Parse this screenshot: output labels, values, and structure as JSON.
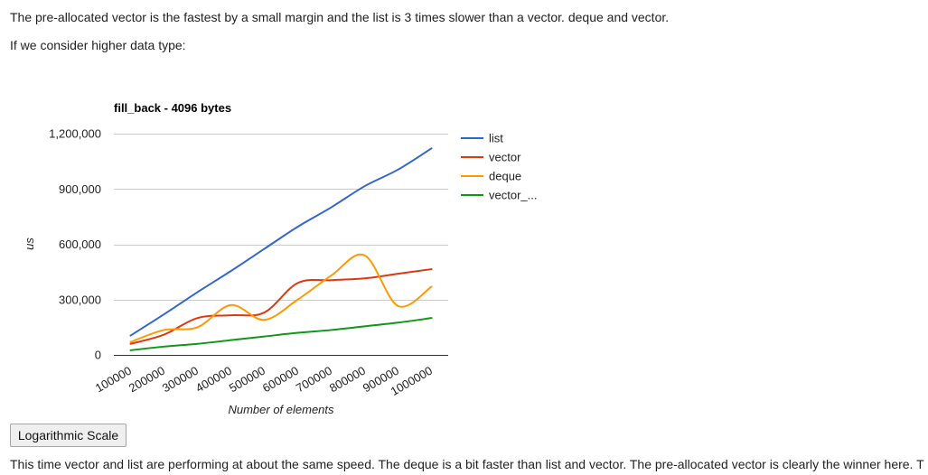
{
  "article": {
    "intro": "The pre-allocated vector is the fastest by a small margin and the list is 3 times slower than a vector. deque and vector.",
    "lead_in": "If we consider higher data type:",
    "log_scale_button": "Logarithmic Scale",
    "conclusion": "This time vector and list are performing at about the same speed. The deque is a bit faster than list and vector. The pre-allocated vector is clearly the winner here. T"
  },
  "chart_data": {
    "type": "line",
    "title": "fill_back - 4096 bytes",
    "xlabel": "Number of elements",
    "ylabel": "us",
    "categories": [
      "100000",
      "200000",
      "300000",
      "400000",
      "500000",
      "600000",
      "700000",
      "800000",
      "900000",
      "1000000"
    ],
    "ylim": [
      0,
      1200000
    ],
    "yticks": [
      0,
      300000,
      600000,
      900000,
      1200000
    ],
    "ytick_labels": [
      "0",
      "300,000",
      "600,000",
      "900,000",
      "1,200,000"
    ],
    "grid": true,
    "legend": "right",
    "series": [
      {
        "name": "list",
        "color": "#3366cc",
        "values": [
          105000,
          220000,
          340000,
          455000,
          575000,
          695000,
          800000,
          915000,
          1005000,
          1120000
        ]
      },
      {
        "name": "vector",
        "color": "#dc3912",
        "values": [
          60000,
          110000,
          200000,
          215000,
          230000,
          390000,
          405000,
          415000,
          440000,
          465000
        ]
      },
      {
        "name": "deque",
        "color": "#ff9900",
        "values": [
          70000,
          135000,
          150000,
          270000,
          190000,
          300000,
          430000,
          540000,
          265000,
          370000
        ]
      },
      {
        "name": "vector_...",
        "color": "#109618",
        "values": [
          25000,
          45000,
          60000,
          80000,
          100000,
          120000,
          135000,
          155000,
          175000,
          200000
        ]
      }
    ]
  }
}
